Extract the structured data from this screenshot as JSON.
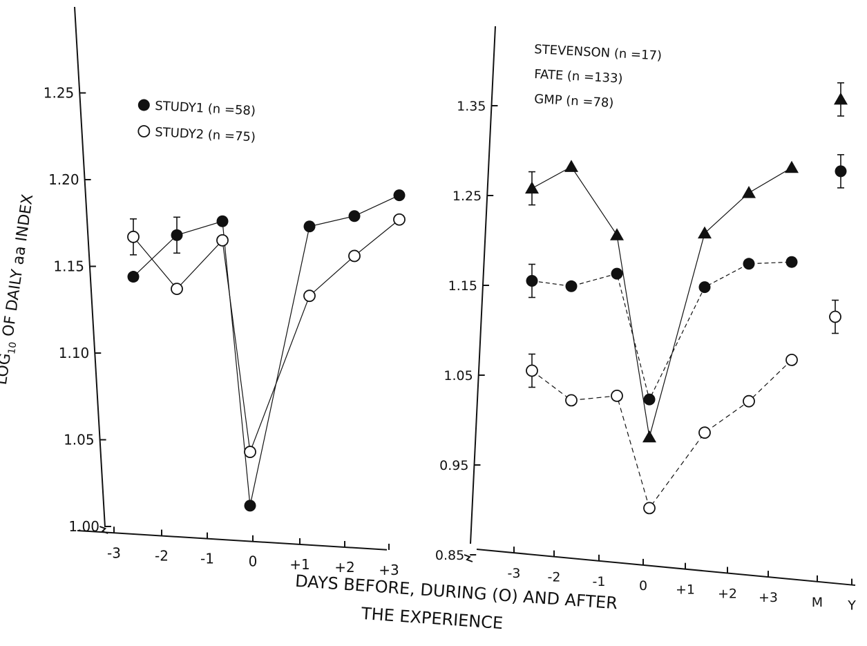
{
  "colors": {
    "ink": "#111111",
    "paper": "#ffffff"
  },
  "xlabel_lines": [
    "DAYS BEFORE, DURING (O) AND AFTER",
    "THE EXPERIENCE"
  ],
  "chart_data": [
    {
      "type": "line",
      "ylabel": "LOG10 OF DAILY aa INDEX",
      "ylabel_parts": {
        "before": "LOG",
        "sub": "10",
        "after": " OF DAILY aa INDEX"
      },
      "yticks": [
        "1.00",
        "1.05",
        "1.10",
        "1.15",
        "1.20",
        "1.25"
      ],
      "ylim": [
        1.0,
        1.28
      ],
      "axis_break": true,
      "xticks": [
        "-3",
        "-2",
        "-1",
        "0",
        "+1",
        "+2",
        "+3"
      ],
      "legend_position": "top-left",
      "series": [
        {
          "name": "STUDY1 (n =58)",
          "marker": "filled-circle",
          "x": [
            -3,
            -2,
            -1,
            0,
            1,
            2,
            3
          ],
          "y": [
            1.144,
            1.168,
            1.176,
            1.012,
            1.173,
            1.179,
            1.191
          ],
          "error_bar_at": [
            -2
          ]
        },
        {
          "name": "STUDY2 (n =75)",
          "marker": "open-circle",
          "x": [
            -3,
            -2,
            -1,
            0,
            1,
            2,
            3
          ],
          "y": [
            1.167,
            1.137,
            1.165,
            1.043,
            1.133,
            1.156,
            1.177
          ],
          "error_bar_at": [
            -3
          ]
        }
      ]
    },
    {
      "type": "line",
      "yticks": [
        "0.85",
        "0.95",
        "1.05",
        "1.15",
        "1.25",
        "1.35"
      ],
      "ylim": [
        0.85,
        1.42
      ],
      "axis_break": true,
      "xticks": [
        "-3",
        "-2",
        "-1",
        "0",
        "+1",
        "+2",
        "+3",
        "M",
        "Y"
      ],
      "legend_position": "top-left",
      "series": [
        {
          "name": "STEVENSON (n =17)",
          "marker": "filled-triangle",
          "x": [
            -3,
            -2,
            -1,
            0,
            1,
            2,
            3
          ],
          "y": [
            1.258,
            1.282,
            1.206,
            0.981,
            1.208,
            1.253,
            1.281
          ],
          "extra": [
            {
              "x": "Y",
              "y": 1.357
            }
          ],
          "error_bar_at": [
            -3,
            "Y"
          ]
        },
        {
          "name": "FATE (n =133)",
          "marker": "filled-circle",
          "x": [
            -3,
            -2,
            -1,
            0,
            1,
            2,
            3
          ],
          "y": [
            1.155,
            1.149,
            1.163,
            1.023,
            1.148,
            1.174,
            1.176
          ],
          "extra": [
            {
              "x": "Y",
              "y": 1.277
            }
          ],
          "error_bar_at": [
            -3,
            "Y"
          ]
        },
        {
          "name": "GMP (n =78)",
          "marker": "open-circle",
          "x": [
            -3,
            -2,
            -1,
            0,
            1,
            2,
            3
          ],
          "y": [
            1.055,
            1.022,
            1.027,
            0.902,
            0.986,
            1.021,
            1.067
          ],
          "extra": [
            {
              "x": "M",
              "y": 1.115
            }
          ],
          "error_bar_at": [
            -3,
            "M"
          ]
        }
      ]
    }
  ]
}
